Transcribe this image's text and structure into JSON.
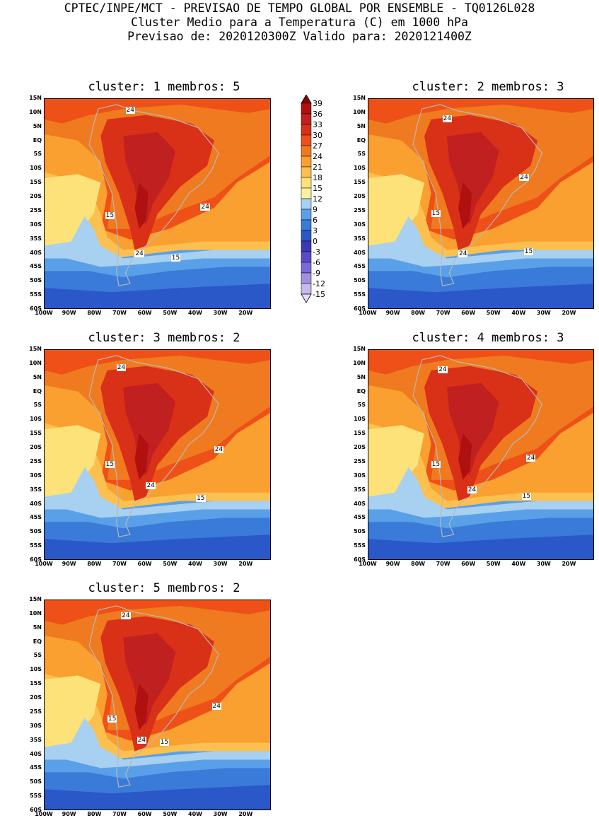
{
  "header": {
    "line1": "CPTEC/INPE/MCT - PREVISAO DE TEMPO GLOBAL POR ENSEMBLE - TQ0126L028",
    "line2": "Cluster Medio para a Temperatura (C) em 1000 hPa",
    "line3": "Previsao de: 2020120300Z   Valido para: 2020121400Z"
  },
  "axes": {
    "y_ticks": [
      "15N",
      "10N",
      "5N",
      "EQ",
      "5S",
      "10S",
      "15S",
      "20S",
      "25S",
      "30S",
      "35S",
      "40S",
      "45S",
      "50S",
      "55S",
      "60S"
    ],
    "x_ticks": [
      "100W",
      "90W",
      "80W",
      "70W",
      "60W",
      "50W",
      "40W",
      "30W",
      "20W"
    ]
  },
  "panels": [
    {
      "title": "cluster: 1   membros: 5",
      "labels": {
        "c24a": "24",
        "c24b": "24",
        "c24c": "24",
        "c15a": "15",
        "c15b": "15"
      }
    },
    {
      "title": "cluster: 2   membros: 3",
      "labels": {
        "c24a": "24",
        "c24b": "24",
        "c24c": "24",
        "c15a": "15",
        "c15b": "15"
      }
    },
    {
      "title": "cluster: 3   membros: 2",
      "labels": {
        "c24a": "24",
        "c24b": "24",
        "c24c": "24",
        "c15a": "15",
        "c15b": "15"
      }
    },
    {
      "title": "cluster: 4   membros: 3",
      "labels": {
        "c24a": "24",
        "c24b": "24",
        "c24c": "24",
        "c15a": "15",
        "c15b": "15"
      }
    },
    {
      "title": "cluster: 5   membros: 2",
      "labels": {
        "c24a": "24",
        "c24b": "24",
        "c24c": "24",
        "c15a": "15",
        "c15b": "15"
      }
    }
  ],
  "colorbar": {
    "levels": [
      "39",
      "36",
      "33",
      "30",
      "27",
      "24",
      "21",
      "18",
      "15",
      "12",
      "9",
      "6",
      "3",
      "0",
      "-3",
      "-6",
      "-9",
      "-12",
      "-15"
    ],
    "colors": [
      "#8b0000",
      "#b01010",
      "#c02020",
      "#d93018",
      "#ee5018",
      "#f07a20",
      "#f9a030",
      "#fbc050",
      "#fde27a",
      "#fbf0a0",
      "#a8d0f0",
      "#5aa0e8",
      "#3a7ad8",
      "#2a58c8",
      "#3a3ab8",
      "#5a4ac8",
      "#7a6ad8",
      "#a090e0",
      "#c8b8ee",
      "#e6dcf6"
    ]
  }
}
